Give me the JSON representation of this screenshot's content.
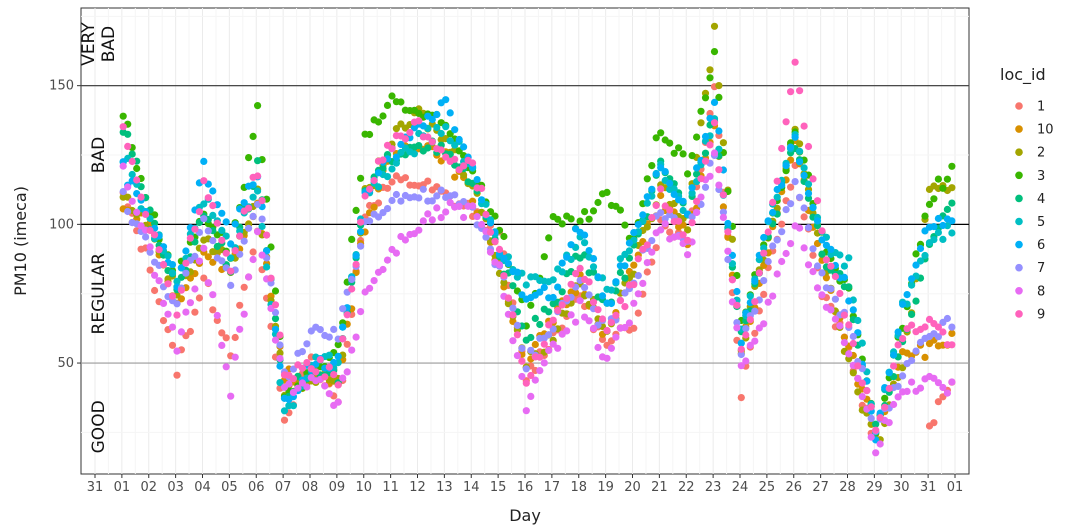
{
  "chart_data": {
    "type": "scatter",
    "title": "",
    "xlabel": "Day",
    "ylabel": "PM10 (imeca)",
    "x_tick_labels": [
      "31",
      "01",
      "02",
      "03",
      "04",
      "05",
      "06",
      "07",
      "08",
      "09",
      "10",
      "11",
      "12",
      "13",
      "14",
      "15",
      "16",
      "17",
      "18",
      "19",
      "20",
      "21",
      "22",
      "23",
      "24",
      "25",
      "26",
      "27",
      "28",
      "29",
      "30",
      "31",
      "01"
    ],
    "y_ticks": [
      50,
      100,
      150
    ],
    "xlim": [
      -1,
      31
    ],
    "ylim": [
      10,
      178
    ],
    "grid": true,
    "reference_lines": [
      {
        "y": 50,
        "color": "#9a9a9a"
      },
      {
        "y": 100,
        "color": "#000000"
      },
      {
        "y": 150,
        "color": "#333333"
      }
    ],
    "band_labels": [
      {
        "label": "GOOD",
        "y_mid": 27
      },
      {
        "label": "REGULAR",
        "y_mid": 75
      },
      {
        "label": "BAD",
        "y_mid": 125
      },
      {
        "label": "VERY BAD",
        "y_mid": 165
      }
    ],
    "legend": {
      "title": "loc_id",
      "position": "right"
    },
    "series": [
      {
        "name": "1",
        "color": "#F8766D",
        "base": [
          110,
          85,
          48,
          80,
          55,
          95,
          30,
          50,
          35,
          105,
          115,
          115,
          110,
          105,
          95,
          45,
          60,
          75,
          55,
          65,
          100,
          95,
          150,
          40,
          85,
          120,
          75,
          55,
          20,
          null,
          25,
          50
        ]
      },
      {
        "name": "10",
        "color": "#D89000",
        "base": [
          105,
          100,
          70,
          90,
          85,
          105,
          45,
          45,
          45,
          100,
          125,
          130,
          125,
          110,
          85,
          50,
          65,
          80,
          60,
          85,
          110,
          95,
          135,
          55,
          90,
          130,
          85,
          55,
          25,
          55,
          55,
          60
        ]
      },
      {
        "name": "2",
        "color": "#A3A500",
        "base": [
          110,
          100,
          75,
          95,
          85,
          110,
          40,
          45,
          45,
          110,
          130,
          140,
          130,
          115,
          85,
          50,
          60,
          80,
          60,
          85,
          115,
          100,
          170,
          55,
          95,
          135,
          90,
          50,
          20,
          50,
          110,
          115
        ]
      },
      {
        "name": "3",
        "color": "#39B600",
        "base": [
          140,
          105,
          80,
          105,
          90,
          140,
          40,
          45,
          55,
          130,
          145,
          140,
          135,
          120,
          100,
          65,
          100,
          100,
          110,
          95,
          135,
          120,
          160,
          65,
          95,
          135,
          95,
          75,
          25,
          65,
          110,
          120
        ]
      },
      {
        "name": "4",
        "color": "#00BF7D",
        "base": [
          135,
          105,
          75,
          105,
          85,
          120,
          40,
          45,
          45,
          110,
          125,
          130,
          125,
          115,
          90,
          60,
          70,
          90,
          70,
          90,
          120,
          105,
          140,
          60,
          95,
          130,
          90,
          75,
          25,
          55,
          95,
          110
        ]
      },
      {
        "name": "5",
        "color": "#00BFC4",
        "base": [
          125,
          100,
          80,
          110,
          90,
          115,
          30,
          50,
          50,
          110,
          120,
          130,
          135,
          120,
          90,
          80,
          80,
          95,
          75,
          95,
          120,
          105,
          140,
          60,
          100,
          130,
          95,
          85,
          25,
          70,
          95,
          100
        ]
      },
      {
        "name": "6",
        "color": "#00B0F6",
        "base": [
          120,
          100,
          80,
          120,
          95,
          120,
          35,
          50,
          50,
          110,
          125,
          135,
          145,
          120,
          90,
          75,
          75,
          100,
          70,
          95,
          120,
          105,
          145,
          60,
          100,
          130,
          95,
          75,
          25,
          70,
          100,
          100
        ]
      },
      {
        "name": "7",
        "color": "#9590FF",
        "base": [
          110,
          90,
          70,
          100,
          80,
          110,
          45,
          60,
          60,
          100,
          110,
          110,
          110,
          105,
          85,
          50,
          65,
          80,
          60,
          80,
          105,
          95,
          125,
          55,
          85,
          115,
          80,
          65,
          25,
          45,
          60,
          65
        ]
      },
      {
        "name": "8",
        "color": "#E76BF3",
        "base": [
          120,
          90,
          55,
          90,
          40,
          100,
          40,
          45,
          35,
          75,
          90,
          100,
          105,
          105,
          85,
          35,
          55,
          70,
          50,
          70,
          100,
          90,
          125,
          50,
          70,
          100,
          75,
          55,
          20,
          40,
          45,
          40
        ]
      },
      {
        "name": "9",
        "color": "#FF62BC",
        "base": [
          135,
          100,
          70,
          115,
          85,
          120,
          45,
          50,
          45,
          110,
          130,
          135,
          125,
          120,
          90,
          45,
          65,
          85,
          60,
          80,
          110,
          95,
          135,
          55,
          95,
          160,
          95,
          65,
          25,
          60,
          65,
          55
        ]
      }
    ]
  }
}
